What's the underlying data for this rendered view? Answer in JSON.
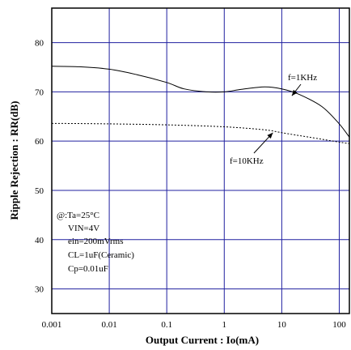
{
  "chart_data": {
    "type": "line",
    "title": "",
    "xlabel": "Output Current : Io(mA)",
    "ylabel": "Ripple Rejection : RR(dB)",
    "x_scale": "log",
    "xlim": [
      0.001,
      150
    ],
    "ylim": [
      25,
      87
    ],
    "x_ticks": [
      {
        "value": 0.001,
        "label": "0.001"
      },
      {
        "value": 0.01,
        "label": "0.01"
      },
      {
        "value": 0.1,
        "label": "0.1"
      },
      {
        "value": 1,
        "label": "1"
      },
      {
        "value": 10,
        "label": "10"
      },
      {
        "value": 100,
        "label": "100"
      }
    ],
    "y_ticks": [
      {
        "value": 30,
        "label": "30"
      },
      {
        "value": 40,
        "label": "40"
      },
      {
        "value": 50,
        "label": "50"
      },
      {
        "value": 60,
        "label": "60"
      },
      {
        "value": 70,
        "label": "70"
      },
      {
        "value": 80,
        "label": "80"
      }
    ],
    "grid": true,
    "series": [
      {
        "name": "f=1KHz",
        "line_style": "solid",
        "color": "#000000",
        "x": [
          0.001,
          0.003,
          0.01,
          0.03,
          0.1,
          0.2,
          0.5,
          1,
          2,
          5,
          10,
          20,
          50,
          100,
          150
        ],
        "y": [
          75.2,
          75.1,
          74.6,
          73.5,
          71.9,
          70.6,
          70.0,
          70.0,
          70.5,
          71.0,
          70.6,
          69.5,
          67.0,
          63.5,
          60.8
        ]
      },
      {
        "name": "f=10KHz",
        "line_style": "dotted",
        "color": "#000000",
        "x": [
          0.001,
          0.01,
          0.1,
          1,
          5,
          10,
          30,
          100,
          150
        ],
        "y": [
          63.6,
          63.5,
          63.3,
          62.9,
          62.3,
          61.7,
          60.8,
          59.8,
          59.5
        ]
      }
    ],
    "annotations": [
      {
        "text": "f=1KHz",
        "arrow_to": {
          "x": 15,
          "y": 69.2
        }
      },
      {
        "text": "f=10KHz",
        "arrow_to": {
          "x": 7,
          "y": 61.7
        }
      }
    ],
    "conditions": [
      "@:Ta=25°C",
      "VIN=4V",
      "ein=200mVrms",
      "CL=1uF(Ceramic)",
      "Cp=0.01uF"
    ],
    "colors": {
      "grid": "#2020a0",
      "frame": "#000000",
      "background": "#ffffff"
    }
  }
}
